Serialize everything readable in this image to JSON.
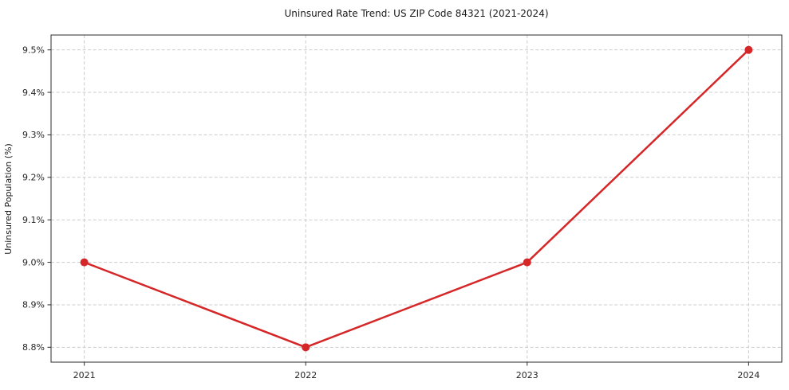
{
  "figure": {
    "title": "Uninsured Rate Trend: US ZIP Code 84321 (2021-2024)"
  },
  "chart_data": {
    "type": "line",
    "title": "Uninsured Rate Trend: US ZIP Code 84321 (2021-2024)",
    "xlabel": "",
    "ylabel": "Uninsured Population (%)",
    "x": [
      2021,
      2022,
      2023,
      2024
    ],
    "series": [
      {
        "name": "uninsured-rate",
        "values": [
          9.0,
          8.8,
          9.0,
          9.5
        ],
        "color": "#d62728",
        "marker": "circle"
      }
    ],
    "xticks": [
      2021,
      2022,
      2023,
      2024
    ],
    "xtick_labels": [
      "2021",
      "2022",
      "2023",
      "2024"
    ],
    "yticks": [
      8.8,
      8.9,
      9.0,
      9.1,
      9.2,
      9.3,
      9.4,
      9.5
    ],
    "ytick_labels": [
      "8.8%",
      "8.9%",
      "9.0%",
      "9.1%",
      "9.2%",
      "9.3%",
      "9.4%",
      "9.5%"
    ],
    "xlim": [
      2020.85,
      2024.15
    ],
    "ylim": [
      8.765,
      9.535
    ],
    "grid": true,
    "grid_style": "dashed",
    "grid_color": "#cccccc",
    "legend_position": "none",
    "background": "#ffffff",
    "frame_color": "#2b2b2b"
  }
}
